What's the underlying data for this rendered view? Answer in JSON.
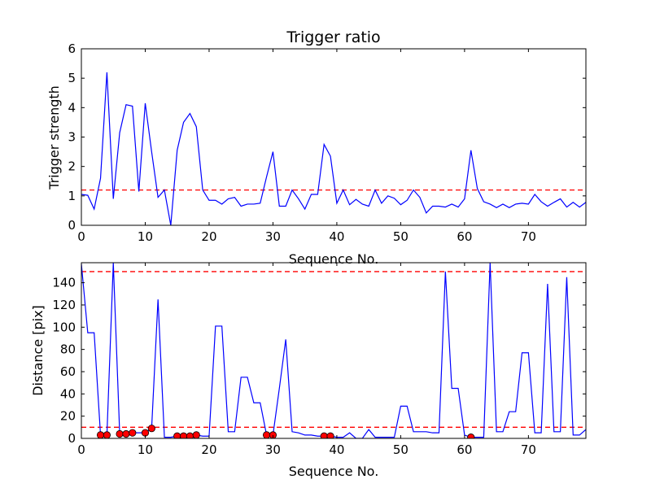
{
  "chart_data": [
    {
      "type": "line",
      "title": "Trigger ratio",
      "xlabel": "Sequence No.",
      "ylabel": "Trigger strength",
      "xlim": [
        0,
        79
      ],
      "ylim": [
        0,
        6
      ],
      "xticks": [
        0,
        10,
        20,
        30,
        40,
        50,
        60,
        70
      ],
      "yticks": [
        0,
        1,
        2,
        3,
        4,
        5,
        6
      ],
      "grid": false,
      "line_color": "#0000ff",
      "threshold_color": "#ff0000",
      "thresholds": [
        1.2
      ],
      "series": [
        {
          "x": [
            0,
            1,
            2,
            3,
            4,
            5,
            6,
            7,
            8,
            9,
            10,
            11,
            12,
            13,
            14,
            15,
            16,
            17,
            18,
            19,
            20,
            21,
            22,
            23,
            24,
            25,
            26,
            27,
            28,
            29,
            30,
            31,
            32,
            33,
            34,
            35,
            36,
            37,
            38,
            39,
            40,
            41,
            42,
            43,
            44,
            45,
            46,
            47,
            48,
            49,
            50,
            51,
            52,
            53,
            54,
            55,
            56,
            57,
            58,
            59,
            60,
            61,
            62,
            63,
            64,
            65,
            66,
            67,
            68,
            69,
            70,
            71,
            72,
            73,
            74,
            75,
            76,
            77,
            78,
            79
          ],
          "values": [
            1.05,
            1.02,
            0.55,
            1.6,
            5.2,
            0.9,
            3.15,
            4.1,
            4.05,
            1.15,
            4.15,
            2.5,
            0.95,
            1.2,
            0.0,
            2.55,
            3.5,
            3.8,
            3.35,
            1.2,
            0.85,
            0.85,
            0.72,
            0.9,
            0.95,
            0.65,
            0.72,
            0.72,
            0.75,
            1.65,
            2.5,
            0.65,
            0.65,
            1.2,
            0.9,
            0.55,
            1.05,
            1.05,
            2.75,
            2.35,
            0.75,
            1.2,
            0.7,
            0.88,
            0.72,
            0.65,
            1.2,
            0.75,
            1.0,
            0.92,
            0.7,
            0.85,
            1.2,
            0.95,
            0.42,
            0.65,
            0.65,
            0.62,
            0.72,
            0.62,
            0.9,
            2.55,
            1.25,
            0.8,
            0.72,
            0.6,
            0.72,
            0.6,
            0.72,
            0.75,
            0.72,
            1.05,
            0.8,
            0.65,
            0.78,
            0.9,
            0.62,
            0.78,
            0.62,
            0.78
          ]
        }
      ]
    },
    {
      "type": "line",
      "title": "",
      "xlabel": "Sequence No.",
      "ylabel": "Distance [pix]",
      "xlim": [
        0,
        79
      ],
      "ylim": [
        0,
        158
      ],
      "xticks": [
        0,
        10,
        20,
        30,
        40,
        50,
        60,
        70
      ],
      "yticks": [
        0,
        20,
        40,
        60,
        80,
        100,
        120,
        140
      ],
      "grid": false,
      "line_color": "#0000ff",
      "threshold_color": "#ff0000",
      "marker_color": "#ff0000",
      "thresholds": [
        150,
        10
      ],
      "series": [
        {
          "x": [
            0,
            1,
            2,
            3,
            4,
            5,
            6,
            7,
            8,
            9,
            10,
            11,
            12,
            13,
            14,
            15,
            16,
            17,
            18,
            19,
            20,
            21,
            22,
            23,
            24,
            25,
            26,
            27,
            28,
            29,
            30,
            31,
            32,
            33,
            34,
            35,
            36,
            37,
            38,
            39,
            40,
            41,
            42,
            43,
            44,
            45,
            46,
            47,
            48,
            49,
            50,
            51,
            52,
            53,
            54,
            55,
            56,
            57,
            58,
            59,
            60,
            61,
            62,
            63,
            64,
            65,
            66,
            67,
            68,
            69,
            70,
            71,
            72,
            73,
            74,
            75,
            76,
            77,
            78,
            79
          ],
          "values": [
            157,
            95,
            95,
            3,
            3,
            158,
            4,
            4,
            5,
            5,
            5,
            9,
            125,
            1,
            1,
            2,
            2,
            2,
            3,
            2,
            2,
            101,
            101,
            6,
            6,
            55,
            55,
            32,
            32,
            3,
            3,
            45,
            89,
            6,
            5,
            3,
            3,
            2,
            2,
            2,
            1,
            1,
            5,
            0,
            0,
            8,
            1,
            1,
            1,
            1,
            29,
            29,
            6,
            6,
            6,
            5,
            5,
            150,
            45,
            45,
            3,
            1,
            1,
            1,
            158,
            6,
            6,
            24,
            24,
            77,
            77,
            5,
            5,
            139,
            6,
            6,
            145,
            3,
            3,
            8
          ]
        }
      ],
      "markers": {
        "x": [
          3,
          4,
          6,
          7,
          8,
          10,
          11,
          15,
          16,
          17,
          18,
          29,
          30,
          38,
          39,
          61
        ],
        "values": [
          3,
          3,
          4,
          4,
          5,
          5,
          9,
          2,
          2,
          2,
          3,
          3,
          3,
          2,
          2,
          1
        ]
      }
    }
  ]
}
